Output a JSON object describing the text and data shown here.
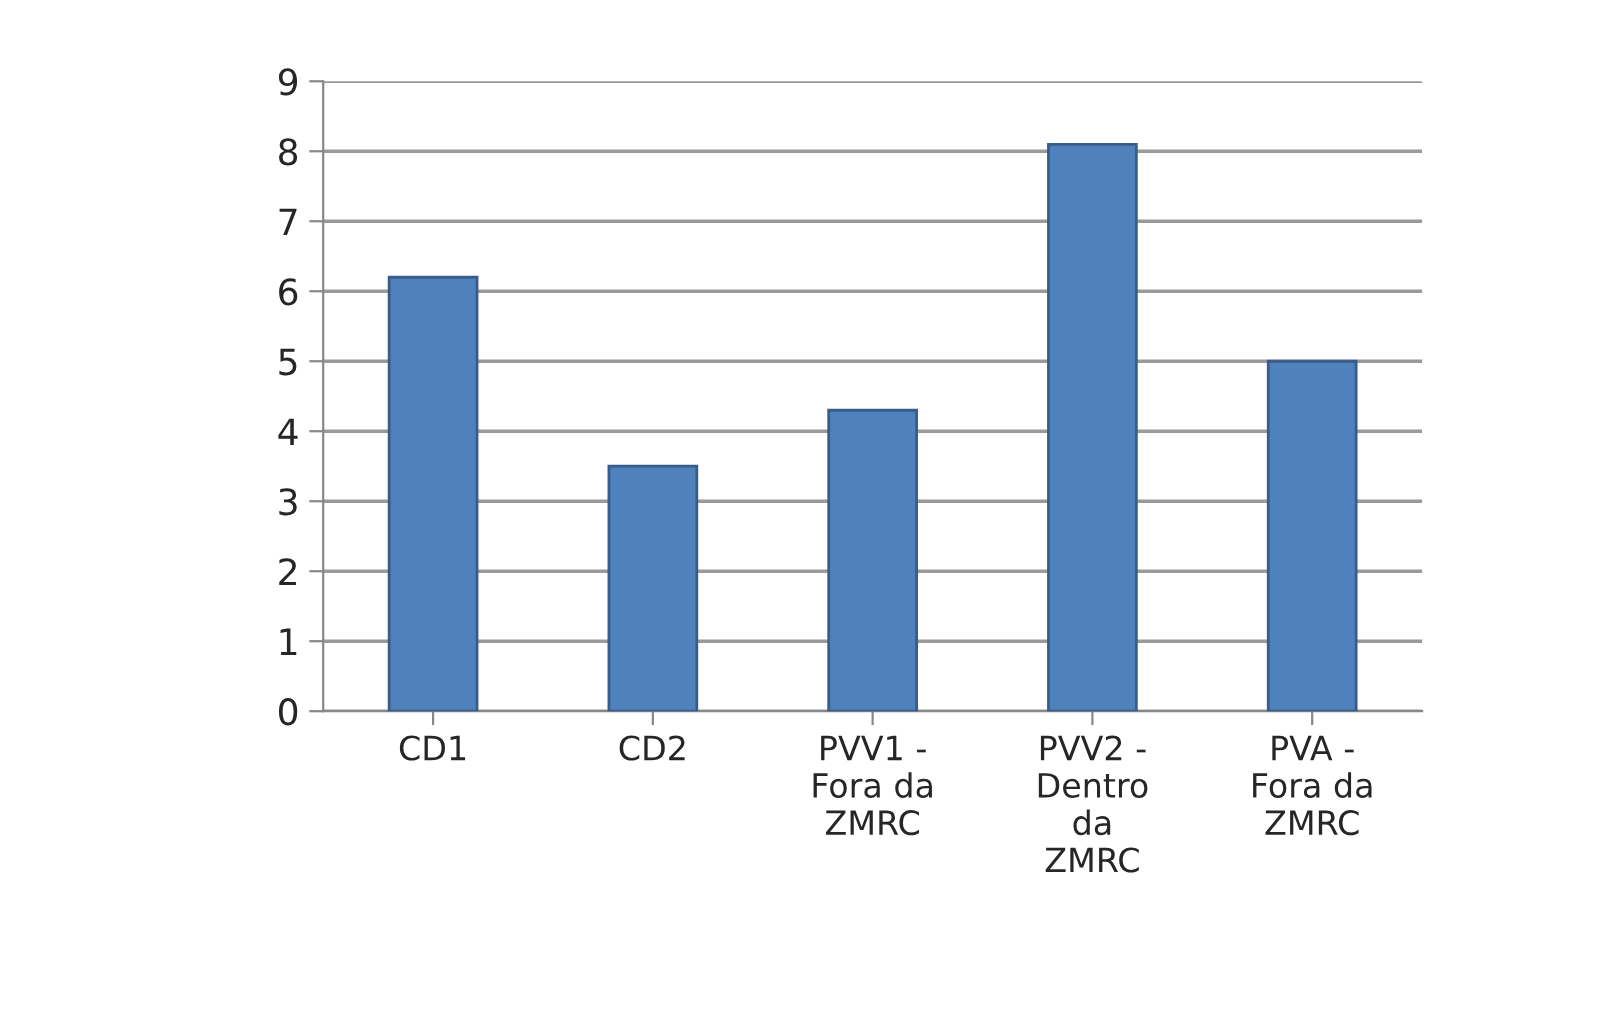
{
  "chart_data": {
    "type": "bar",
    "categories": [
      "CD1",
      "CD2",
      "PVV1 -\nFora da\nZMRC",
      "PVV2 -\nDentro\nda\nZMRC",
      "PVA -\nFora da\nZMRC"
    ],
    "values": [
      6.2,
      3.5,
      4.3,
      8.1,
      5.0
    ],
    "color": "#4f81bd",
    "ylim": [
      0,
      9
    ],
    "yticks": [
      0,
      1,
      2,
      3,
      4,
      5,
      6,
      7,
      8,
      9
    ],
    "grid": "y"
  }
}
